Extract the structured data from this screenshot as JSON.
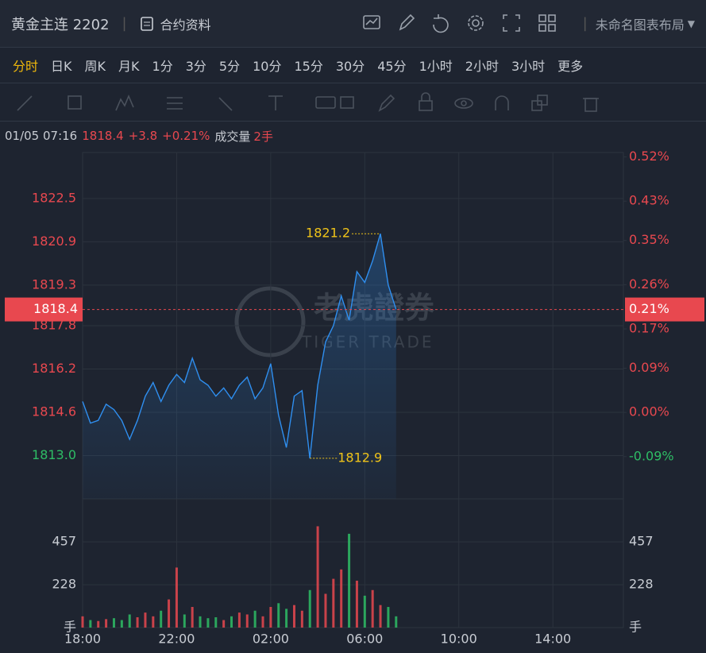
{
  "header": {
    "symbol": "黄金主连 2202",
    "contract_info": "合约资料",
    "layout_name": "未命名图表布局"
  },
  "periods": [
    "分时",
    "日K",
    "周K",
    "月K",
    "1分",
    "3分",
    "5分",
    "10分",
    "15分",
    "30分",
    "45分",
    "1小时",
    "2小时",
    "3小时",
    "更多"
  ],
  "info": {
    "time": "01/05 07:16",
    "price": "1818.4",
    "change": "+3.8",
    "change_pct": "+0.21%",
    "volume_label": "成交量",
    "volume": "2手"
  },
  "watermark": {
    "cn": "老虎證券",
    "en": "TIGER TRADE"
  },
  "chart_data": {
    "type": "line",
    "categories": [
      "18:00",
      null,
      null,
      null,
      null,
      null,
      null,
      null,
      null,
      null,
      null,
      null,
      "22:00",
      null,
      null,
      null,
      null,
      null,
      null,
      null,
      null,
      null,
      null,
      null,
      "02:00",
      null,
      null,
      null,
      null,
      null,
      null,
      null,
      null,
      null,
      null,
      null,
      "06:00",
      null,
      null,
      null,
      null,
      null,
      null,
      null,
      null,
      null,
      null,
      null,
      "10:00",
      null,
      null,
      null,
      null,
      null,
      null,
      null,
      null,
      null,
      null,
      null,
      "14:00",
      null,
      null,
      null,
      null,
      null,
      null,
      null,
      null,
      null
    ],
    "values": [
      1815.0,
      1814.2,
      1814.3,
      1814.9,
      1814.7,
      1814.3,
      1813.6,
      1814.3,
      1815.2,
      1815.7,
      1815.0,
      1815.6,
      1816.0,
      1815.7,
      1816.6,
      1815.8,
      1815.6,
      1815.2,
      1815.5,
      1815.1,
      1815.6,
      1815.9,
      1815.1,
      1815.5,
      1816.4,
      1814.5,
      1813.3,
      1815.2,
      1815.4,
      1812.9,
      1815.6,
      1817.2,
      1817.8,
      1818.9,
      1818.0,
      1819.8,
      1819.4,
      1820.2,
      1821.2,
      1819.3,
      1818.4,
      null,
      null,
      null,
      null,
      null,
      null,
      null,
      null,
      null,
      null,
      null,
      null,
      null,
      null,
      null,
      null,
      null,
      null,
      null,
      null,
      null,
      null,
      null,
      null,
      null,
      null,
      null,
      null,
      null
    ],
    "color": "#2f8ff0",
    "up_color": "#e8484f",
    "down_color": "#2ebd65",
    "ylim": [
      1811.4,
      1824.2
    ],
    "yticks": [
      1822.5,
      1820.9,
      1819.3,
      1817.8,
      1816.2,
      1814.6,
      {
        "value": 1813,
        "label": "1813.0"
      }
    ],
    "y2lim": [
      -0.176,
      0.529
    ],
    "y2ticks": [
      {
        "value": 0.52,
        "label": "0.52%"
      },
      {
        "value": 0.43,
        "label": "0.43%"
      },
      {
        "value": 0.35,
        "label": "0.35%"
      },
      {
        "value": 0.26,
        "label": "0.26%"
      },
      {
        "value": 0.17,
        "label": "0.17%"
      },
      {
        "value": 0.09,
        "label": "0.09%"
      },
      {
        "value": 0,
        "label": "0.00%"
      },
      {
        "value": -0.09,
        "label": "-0.09%"
      }
    ],
    "last_price": 1818.4,
    "last_change_pct": {
      "value": 0.21,
      "label": "0.21%"
    },
    "high": 1821.2,
    "low": 1812.9,
    "grid": true,
    "volume": {
      "values": [
        60,
        40,
        35,
        45,
        50,
        40,
        70,
        55,
        80,
        60,
        90,
        150,
        320,
        70,
        110,
        60,
        50,
        55,
        40,
        60,
        80,
        70,
        90,
        60,
        110,
        130,
        100,
        120,
        90,
        200,
        540,
        180,
        260,
        310,
        500,
        250,
        170,
        200,
        120,
        110,
        60,
        null,
        null,
        null,
        null,
        null,
        null,
        null,
        null,
        null,
        null,
        null,
        null,
        null,
        null,
        null,
        null,
        null,
        null,
        null,
        null,
        null,
        null,
        null,
        null,
        null,
        null,
        null,
        null,
        null
      ],
      "ylim": [
        0,
        686
      ],
      "yticks": [
        {
          "value": 0,
          "label": "手"
        },
        228,
        457
      ]
    }
  }
}
